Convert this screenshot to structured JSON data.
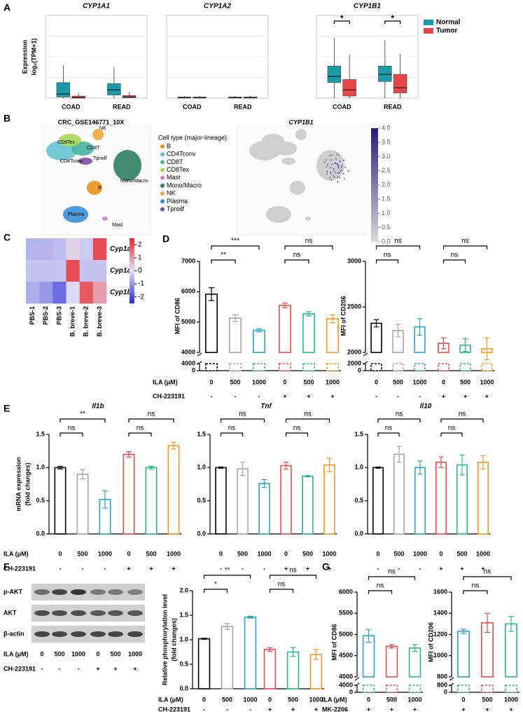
{
  "panel_labels": [
    "A",
    "B",
    "C",
    "D",
    "E",
    "F",
    "G"
  ],
  "blot": {
    "bands": [
      "p-AKT",
      "AKT",
      "β-actin"
    ],
    "row_titles": [
      "ILA (μM)",
      "CH-223191"
    ],
    "categories": [
      "0",
      "500",
      "1000",
      "0",
      "500",
      "1000"
    ],
    "conditions": [
      "-",
      "-",
      "-",
      "+",
      "+",
      "+"
    ]
  },
  "chart_data": [
    {
      "type": "box",
      "title": "CYP1A1",
      "ylabel": [
        "Expression",
        "log₂(TPM+1)"
      ],
      "categories": [
        "COAD",
        "READ"
      ],
      "ylim": [
        0,
        8
      ],
      "series": [
        {
          "color": "#1b9aaa",
          "boxes": [
            {
              "whislo": 0,
              "q1": 0.1,
              "median": 0.4,
              "q3": 1.5,
              "whishi": 3.2
            },
            {
              "whislo": 0,
              "q1": 0.3,
              "median": 0.8,
              "q3": 1.4,
              "whishi": 3.0
            }
          ]
        },
        {
          "color": "#e8474a",
          "boxes": [
            {
              "whislo": 0,
              "q1": 0.0,
              "median": 0.05,
              "q3": 0.2,
              "whishi": 0.5
            },
            {
              "whislo": 0,
              "q1": 0.05,
              "median": 0.1,
              "q3": 0.25,
              "whishi": 0.6
            }
          ]
        }
      ]
    },
    {
      "type": "box",
      "title": "CYP1A2",
      "categories": [
        "COAD",
        "READ"
      ],
      "ylim": [
        0,
        8
      ],
      "series": [
        {
          "color": "#1b9aaa",
          "boxes": [
            {
              "whislo": 0,
              "q1": 0,
              "median": 0.05,
              "q3": 0.1,
              "whishi": 0.2
            },
            {
              "whislo": 0,
              "q1": 0,
              "median": 0.05,
              "q3": 0.1,
              "whishi": 0.2
            }
          ]
        },
        {
          "color": "#e8474a",
          "boxes": [
            {
              "whislo": 0,
              "q1": 0,
              "median": 0.05,
              "q3": 0.1,
              "whishi": 0.2
            },
            {
              "whislo": 0,
              "q1": 0,
              "median": 0.05,
              "q3": 0.1,
              "whishi": 0.2
            }
          ]
        }
      ]
    },
    {
      "type": "box",
      "title": "CYP1B1",
      "categories": [
        "COAD",
        "READ"
      ],
      "ylim": [
        0,
        8
      ],
      "legend": "right",
      "annotations": [
        {
          "category": 0,
          "label": "*"
        },
        {
          "category": 1,
          "label": "*"
        }
      ],
      "series": [
        {
          "name": "Normal",
          "color": "#1b9aaa",
          "boxes": [
            {
              "whislo": 0,
              "q1": 1.5,
              "median": 2.1,
              "q3": 3.1,
              "whishi": 5.8
            },
            {
              "whislo": 0,
              "q1": 1.6,
              "median": 2.3,
              "q3": 3.1,
              "whishi": 5.6
            }
          ]
        },
        {
          "name": "Tumor",
          "color": "#e8474a",
          "boxes": [
            {
              "whislo": 0,
              "q1": 0.2,
              "median": 0.8,
              "q3": 1.8,
              "whishi": 4.2
            },
            {
              "whislo": 0,
              "q1": 0.5,
              "median": 1.0,
              "q3": 2.3,
              "whishi": 4.3
            }
          ]
        }
      ]
    },
    {
      "type": "umap",
      "title": "CRC_GSE146771_10X",
      "legend_title": "Cell type (major-lineage)",
      "cell_types": [
        {
          "name": "B",
          "color": "#e8931e"
        },
        {
          "name": "CD4Tconv",
          "color": "#66c2d0"
        },
        {
          "name": "CD8T",
          "color": "#45b39d"
        },
        {
          "name": "CD8Tex",
          "color": "#a6d854"
        },
        {
          "name": "Mast",
          "color": "#d97fc4"
        },
        {
          "name": "Mono/Macro",
          "color": "#2f7f62"
        },
        {
          "name": "NK",
          "color": "#f2a93b"
        },
        {
          "name": "Plasma",
          "color": "#3b8fd9"
        },
        {
          "name": "Tproilf",
          "color": "#7b4ca0"
        }
      ]
    },
    {
      "type": "feature",
      "title": "CYP1B1",
      "clim": [
        0,
        4
      ],
      "cticks": [
        {
          "value": 0,
          "label": "0.0"
        },
        0.5,
        {
          "value": 1,
          "label": "1.0"
        },
        1.5,
        {
          "value": 2,
          "label": "2.0"
        },
        2.5,
        {
          "value": 3,
          "label": "3.0"
        },
        3.5,
        {
          "value": 4,
          "label": "4.0"
        }
      ]
    },
    {
      "type": "heatmap",
      "rows": [
        "Cyp1a1",
        "Cyp1a2",
        "Cyp1b1"
      ],
      "columns": [
        "PBS-1",
        "PBS-2",
        "PBS-3",
        "B. breve-1",
        "B. breve-2",
        "B. breve-3"
      ],
      "values": [
        [
          -0.6,
          -0.6,
          -0.5,
          0.2,
          -0.3,
          2.0
        ],
        [
          -0.4,
          -0.4,
          -0.4,
          2.0,
          -0.4,
          -0.4
        ],
        [
          -0.7,
          -1.0,
          -1.6,
          -0.1,
          1.8,
          0.9
        ]
      ],
      "clim": [
        -2.5,
        2.5
      ],
      "cticks": [
        2,
        1,
        0,
        -1,
        -2
      ]
    },
    {
      "type": "bar",
      "ylabel": "MFI of CD86",
      "categories": [
        "0",
        "500",
        "1000",
        "0",
        "500",
        "1000"
      ],
      "conditions": [
        "-",
        "-",
        "-",
        "+",
        "+",
        "+"
      ],
      "row_titles": [
        "ILA (μM)",
        "CH-223191"
      ],
      "values": [
        5920,
        5130,
        4730,
        5550,
        5270,
        5110
      ],
      "errors": [
        210,
        110,
        50,
        80,
        70,
        130
      ],
      "colors": [
        "#000000",
        "#a6a6a6",
        "#2ba3c9",
        "#ec4a4c",
        "#28b98a",
        "#f39a26"
      ],
      "ylim": [
        4000,
        7000
      ],
      "yticks": [
        4000,
        5000,
        6000,
        7000
      ],
      "ylim_lower": [
        0,
        4000
      ],
      "yticks_lower": [
        0,
        4000
      ],
      "brackets": [
        {
          "between": [
            0,
            1
          ],
          "label": "**"
        },
        {
          "between": [
            0,
            2
          ],
          "label": "***"
        },
        {
          "between": [
            3,
            4
          ],
          "label": "ns"
        },
        {
          "between": [
            3,
            5
          ],
          "label": "ns"
        }
      ]
    },
    {
      "type": "bar",
      "ylabel": "MFI of CD206",
      "categories": [
        "0",
        "500",
        "1000",
        "0",
        "500",
        "1000"
      ],
      "conditions": [
        "-",
        "-",
        "-",
        "+",
        "+",
        "+"
      ],
      "values": [
        2320,
        2240,
        2280,
        2100,
        2080,
        2040
      ],
      "errors": [
        40,
        70,
        90,
        60,
        70,
        120
      ],
      "colors": [
        "#000000",
        "#a6a6a6",
        "#2ba3c9",
        "#ec4a4c",
        "#28b98a",
        "#f39a26"
      ],
      "ylim": [
        2000,
        3000
      ],
      "yticks": [
        2000,
        2500,
        3000
      ],
      "ylim_lower": [
        0,
        2000
      ],
      "yticks_lower": [
        0,
        2000
      ],
      "brackets": [
        {
          "between": [
            0,
            1
          ],
          "label": "ns"
        },
        {
          "between": [
            0,
            2
          ],
          "label": "ns"
        },
        {
          "between": [
            3,
            4
          ],
          "label": "ns"
        },
        {
          "between": [
            3,
            5
          ],
          "label": "ns"
        }
      ]
    },
    {
      "type": "bar",
      "title": "Il1b",
      "ylabel": [
        "mRNA expression",
        "(fold changes)"
      ],
      "categories": [
        "0",
        "500",
        "1000",
        "0",
        "500",
        "1000"
      ],
      "conditions": [
        "-",
        "-",
        "-",
        "+",
        "+",
        "+"
      ],
      "row_titles": [
        "ILA (μM)",
        "CH-223191"
      ],
      "values": [
        1.0,
        0.9,
        0.52,
        1.2,
        1.0,
        1.33
      ],
      "errors": [
        0.02,
        0.07,
        0.13,
        0.04,
        0.02,
        0.05
      ],
      "colors": [
        "#000000",
        "#a6a6a6",
        "#2ba3c9",
        "#ec4a4c",
        "#28b98a",
        "#f39a26"
      ],
      "ylim": [
        0,
        1.5
      ],
      "yticks": [
        {
          "value": 0,
          "label": "0.0"
        },
        0.5,
        {
          "value": 1,
          "label": "1.0"
        },
        1.5
      ],
      "brackets": [
        {
          "between": [
            0,
            1
          ],
          "label": "ns"
        },
        {
          "between": [
            0,
            2
          ],
          "label": "**"
        },
        {
          "between": [
            3,
            4
          ],
          "label": "ns"
        },
        {
          "between": [
            3,
            5
          ],
          "label": "ns"
        }
      ]
    },
    {
      "type": "bar",
      "title": "Tnf",
      "categories": [
        "0",
        "500",
        "1000",
        "0",
        "500",
        "1000"
      ],
      "conditions": [
        "-",
        "-",
        "-",
        "+",
        "+",
        "+"
      ],
      "values": [
        1.0,
        0.98,
        0.76,
        1.03,
        0.87,
        1.04
      ],
      "errors": [
        0.01,
        0.1,
        0.06,
        0.05,
        0.01,
        0.1
      ],
      "colors": [
        "#000000",
        "#a6a6a6",
        "#2ba3c9",
        "#ec4a4c",
        "#28b98a",
        "#f39a26"
      ],
      "ylim": [
        0,
        1.5
      ],
      "yticks": [
        {
          "value": 0,
          "label": "0.0"
        },
        0.5,
        {
          "value": 1,
          "label": "1.0"
        },
        1.5
      ],
      "brackets": [
        {
          "between": [
            0,
            1
          ],
          "label": "ns"
        },
        {
          "between": [
            0,
            2
          ],
          "label": "ns"
        },
        {
          "between": [
            3,
            4
          ],
          "label": "ns"
        },
        {
          "between": [
            3,
            5
          ],
          "label": "ns"
        }
      ]
    },
    {
      "type": "bar",
      "title": "Il10",
      "categories": [
        "0",
        "500",
        "1000",
        "0",
        "500",
        "1000"
      ],
      "conditions": [
        "-",
        "-",
        "-",
        "+",
        "+",
        "+"
      ],
      "values": [
        1.0,
        1.2,
        1.0,
        1.08,
        1.04,
        1.08
      ],
      "errors": [
        0.01,
        0.12,
        0.1,
        0.08,
        0.15,
        0.1
      ],
      "colors": [
        "#000000",
        "#a6a6a6",
        "#2ba3c9",
        "#ec4a4c",
        "#28b98a",
        "#f39a26"
      ],
      "ylim": [
        0,
        1.5
      ],
      "yticks": [
        {
          "value": 0,
          "label": "0.0"
        },
        0.5,
        {
          "value": 1,
          "label": "1.0"
        },
        1.5
      ],
      "brackets": [
        {
          "between": [
            0,
            1
          ],
          "label": "ns"
        },
        {
          "between": [
            0,
            2
          ],
          "label": "ns"
        },
        {
          "between": [
            3,
            4
          ],
          "label": "ns"
        },
        {
          "between": [
            3,
            5
          ],
          "label": "ns"
        }
      ]
    },
    {
      "type": "bar",
      "ylabel": [
        "Relative phosphorylation level",
        "(fold changes)"
      ],
      "categories": [
        "0",
        "500",
        "1000",
        "0",
        "500",
        "1000"
      ],
      "conditions": [
        "-",
        "-",
        "-",
        "+",
        "+",
        "+"
      ],
      "row_titles": [
        "ILA (μM)",
        "CH-223191"
      ],
      "values": [
        1.02,
        1.27,
        1.46,
        0.8,
        0.75,
        0.7
      ],
      "errors": [
        0.01,
        0.06,
        0.02,
        0.04,
        0.09,
        0.1
      ],
      "colors": [
        "#000000",
        "#a6a6a6",
        "#2ba3c9",
        "#ec4a4c",
        "#28b98a",
        "#f39a26"
      ],
      "ylim": [
        0,
        2
      ],
      "yticks": [
        {
          "value": 0,
          "label": "0.0"
        },
        0.5,
        {
          "value": 1,
          "label": "1.0"
        },
        1.5,
        {
          "value": 2,
          "label": "2.0"
        }
      ],
      "brackets": [
        {
          "between": [
            0,
            1
          ],
          "label": "*"
        },
        {
          "between": [
            0,
            2
          ],
          "label": "**"
        },
        {
          "between": [
            3,
            4
          ],
          "label": "ns"
        },
        {
          "between": [
            3,
            5
          ],
          "label": "ns"
        }
      ]
    },
    {
      "type": "bar",
      "ylabel": "MFI of CD86",
      "categories": [
        "0",
        "500",
        "1000"
      ],
      "conditions": [
        "+",
        "+",
        "+"
      ],
      "row_titles": [
        "ILA (μM)",
        "MK-2206"
      ],
      "values": [
        4970,
        4720,
        4680
      ],
      "errors": [
        150,
        40,
        80
      ],
      "colors": [
        "#2ba3c9",
        "#ec4a4c",
        "#28b98a"
      ],
      "ylim": [
        4000,
        6000
      ],
      "yticks": [
        4000,
        4500,
        5000,
        5500,
        6000
      ],
      "ylim_lower": [
        0,
        4000
      ],
      "yticks_lower": [
        0,
        4000
      ],
      "brackets": [
        {
          "between": [
            0,
            1
          ],
          "label": "ns"
        },
        {
          "between": [
            0,
            2
          ],
          "label": "ns"
        }
      ]
    },
    {
      "type": "bar",
      "ylabel": "MFI of CD206",
      "categories": [
        "0",
        "500",
        "1000"
      ],
      "conditions": [
        "+",
        "+",
        "+"
      ],
      "values": [
        1230,
        1310,
        1300
      ],
      "errors": [
        20,
        90,
        70
      ],
      "colors": [
        "#2ba3c9",
        "#ec4a4c",
        "#28b98a"
      ],
      "ylim": [
        800,
        1600
      ],
      "yticks": [
        800,
        1000,
        1200,
        1400,
        1600
      ],
      "ylim_lower": [
        0,
        800
      ],
      "yticks_lower": [
        0,
        800
      ],
      "brackets": [
        {
          "between": [
            0,
            1
          ],
          "label": "ns"
        },
        {
          "between": [
            0,
            2
          ],
          "label": "ns"
        }
      ]
    }
  ]
}
